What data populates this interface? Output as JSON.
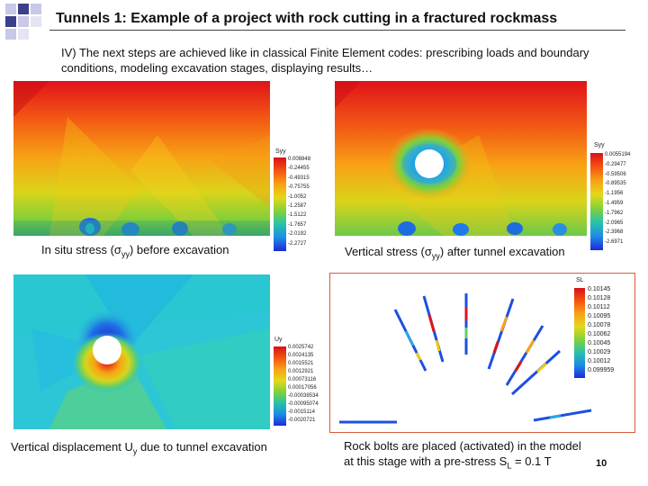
{
  "slide": {
    "title": "Tunnels 1: Example of a project with rock cutting in a fractured rockmass",
    "intro": "IV) The next steps are achieved like in classical Finite Element codes: prescribing loads and boundary conditions, modeling excavation stages, displaying results…",
    "page_number": "10"
  },
  "panels": {
    "insitu": {
      "legend_title": "Syy",
      "legend_values": [
        "0.008848",
        "-0.24455",
        "-0.49315",
        "-0.75755",
        "-1.0052",
        "-1.2587",
        "-1.5122",
        "-1.7657",
        "-2.0192",
        "-2.2727"
      ],
      "caption_prefix": "In situ stress (σ",
      "caption_sub": "yy",
      "caption_suffix": ") before excavation"
    },
    "after": {
      "legend_title": "Syy",
      "legend_values": [
        "0.0055194",
        "-0.29477",
        "-0.59506",
        "-0.89535",
        "-1.1956",
        "-1.4959",
        "-1.7962",
        "-2.0965",
        "-2.3968",
        "-2.6971"
      ],
      "caption_prefix": "Vertical stress (σ",
      "caption_sub": "yy",
      "caption_suffix": ") after tunnel excavation"
    },
    "displacement": {
      "legend_title": "Uy",
      "legend_values": [
        "0.0025742",
        "0.0024135",
        "0.0015521",
        "0.0012921",
        "0.00073116",
        "0.00017056",
        "-0.00038534",
        "-0.00095074",
        "-0.0015114",
        "-0.0020721"
      ],
      "caption_prefix": "Vertical displacement U",
      "caption_sub": "y",
      "caption_suffix": " due to tunnel excavation"
    },
    "bolts": {
      "legend_title": "SL",
      "legend_values": [
        "0.10145",
        "0.10128",
        "0.10112",
        "0.10095",
        "0.10078",
        "0.10062",
        "0.10045",
        "0.10029",
        "0.10012",
        "0.099959"
      ],
      "caption_line1": "Rock bolts are placed (activated) in the model",
      "caption_line2_prefix": "at this stage with a pre-stress S",
      "caption_line2_sub": "L",
      "caption_line2_suffix": " = 0.1 T"
    }
  },
  "colors": {
    "accent_square_dark": "#3c3f8c",
    "accent_square_light": "#c7c9e6",
    "bolts_frame": "#d65c3a"
  }
}
